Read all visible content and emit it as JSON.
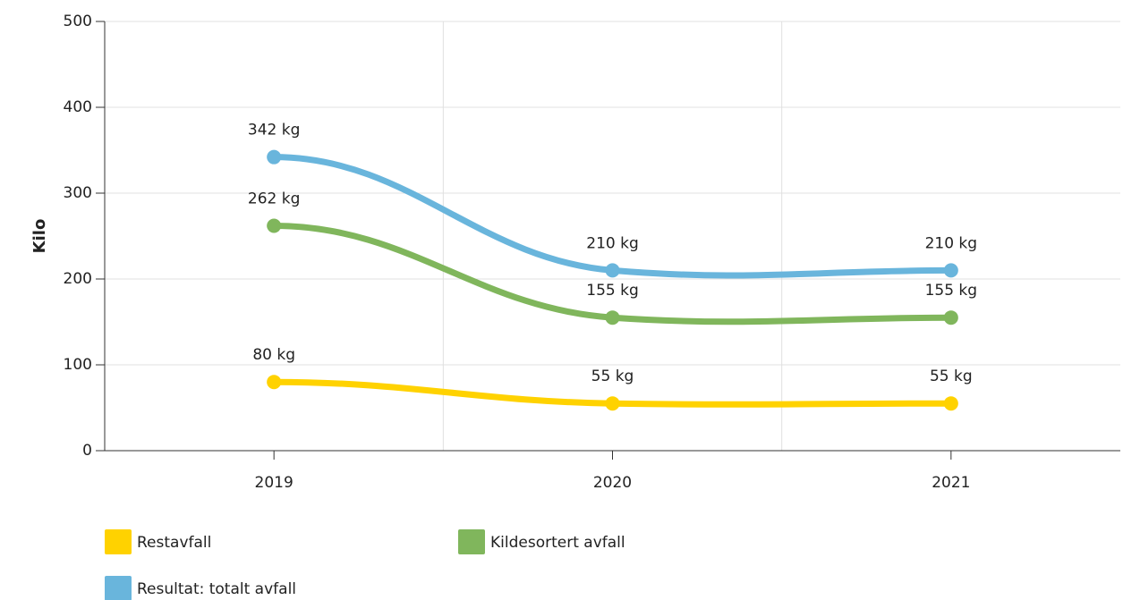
{
  "chart_data": {
    "type": "line",
    "ylabel": "Kilo",
    "categories": [
      "2019",
      "2020",
      "2021"
    ],
    "series": [
      {
        "name": "Restavfall",
        "color": "#ffd200",
        "values": [
          80,
          55,
          55
        ],
        "value_labels": [
          "80 kg",
          "55 kg",
          "55 kg"
        ]
      },
      {
        "name": "Kildesortert avfall",
        "color": "#80b65c",
        "values": [
          262,
          155,
          155
        ],
        "value_labels": [
          "262 kg",
          "155 kg",
          "155 kg"
        ]
      },
      {
        "name": "Resultat: totalt avfall",
        "color": "#69b5dc",
        "values": [
          342,
          210,
          210
        ],
        "value_labels": [
          "342 kg",
          "210 kg",
          "210 kg"
        ]
      }
    ],
    "ylim": [
      0,
      500
    ],
    "yticks": [
      0,
      100,
      200,
      300,
      400,
      500
    ],
    "grid": true
  }
}
